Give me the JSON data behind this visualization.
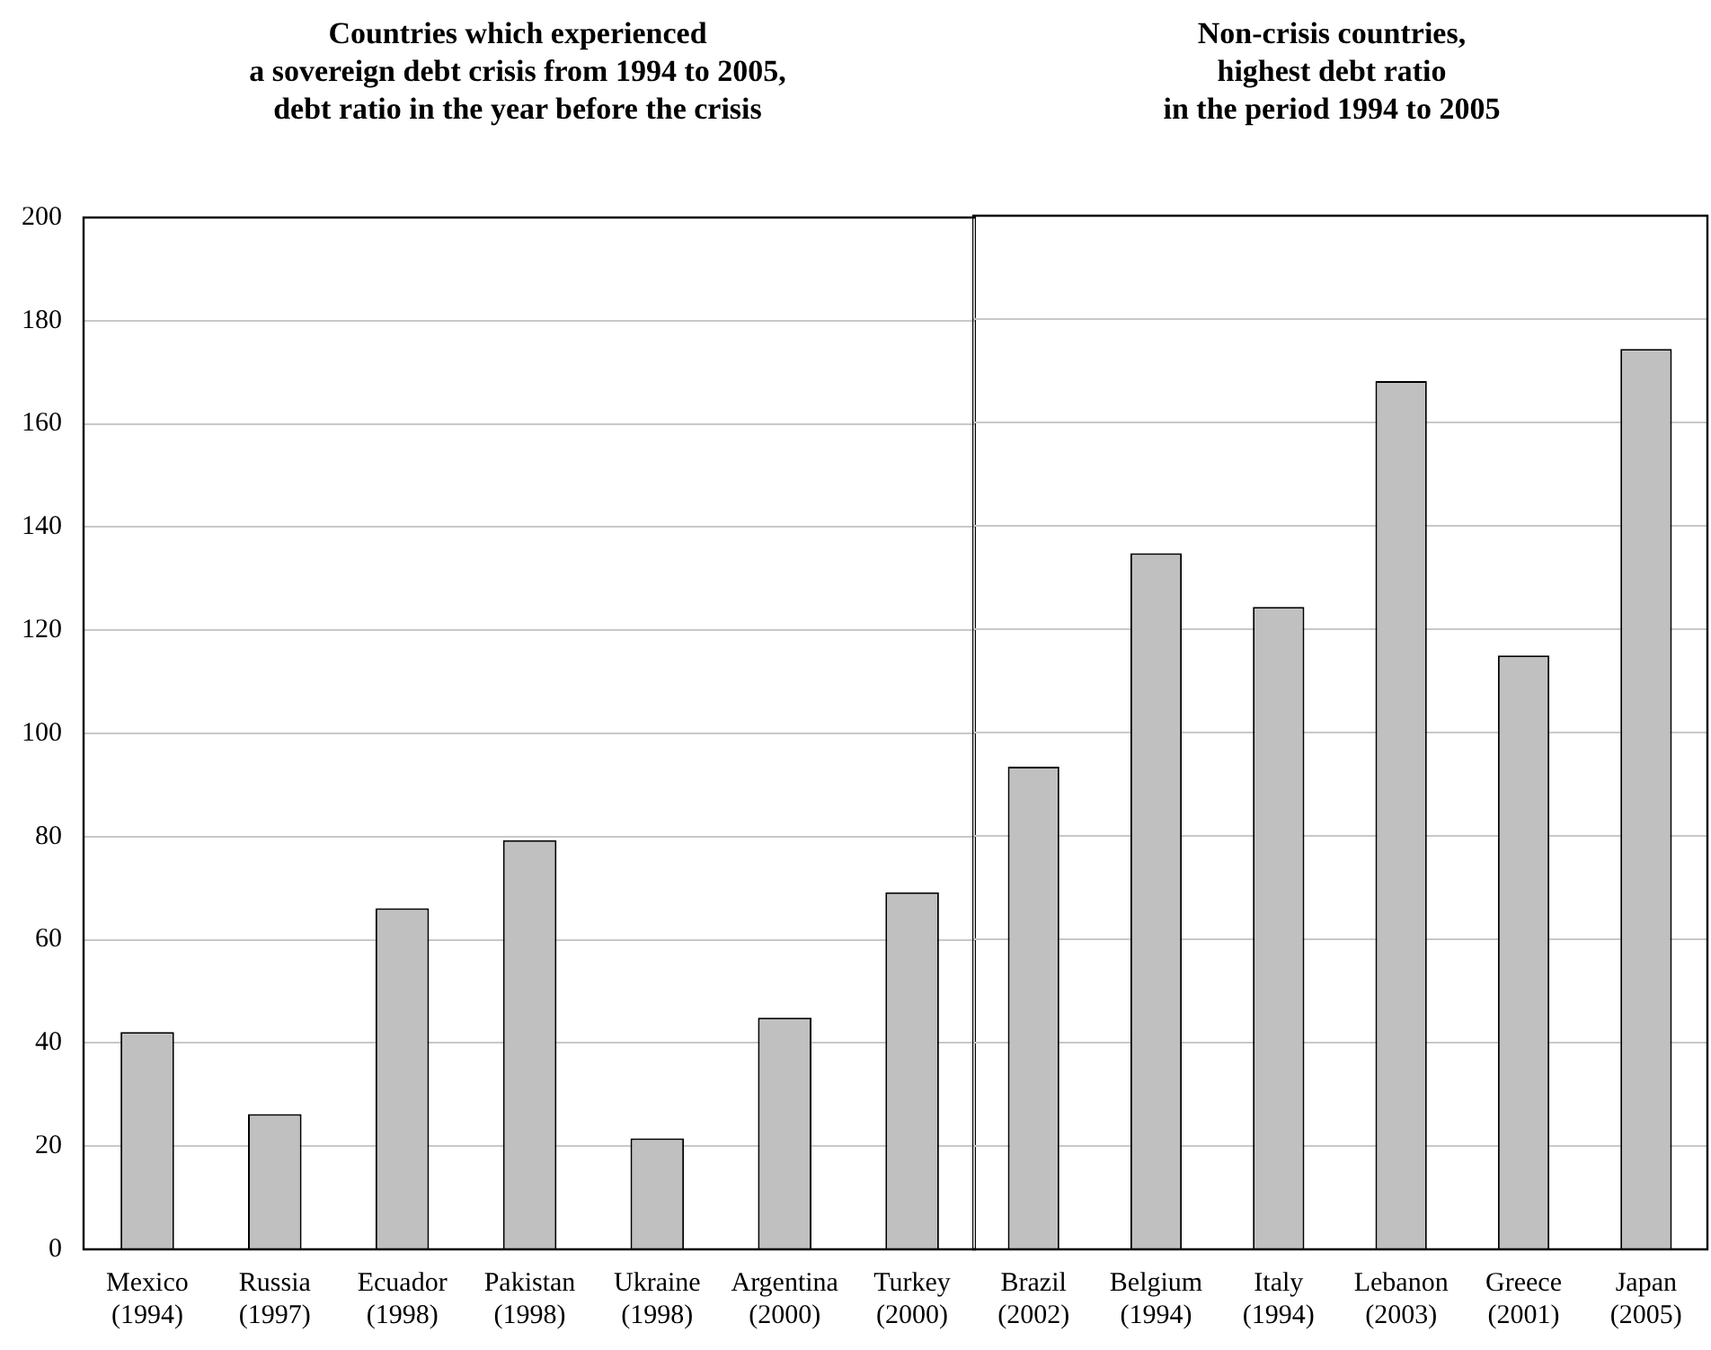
{
  "chart_data": [
    {
      "type": "bar",
      "title": "Countries which experienced\na sovereign debt crisis from 1994 to 2005,\ndebt ratio in the year before the crisis",
      "categories": [
        "Mexico (1994)",
        "Russia (1997)",
        "Ecuador (1998)",
        "Pakistan (1998)",
        "Ukraine (1998)",
        "Argentina (2000)",
        "Turkey (2000)"
      ],
      "values": [
        42.1,
        26.2,
        66.1,
        79.3,
        21.5,
        44.9,
        69.2
      ],
      "color": "#c0c0c0",
      "ylim": [
        0,
        200
      ],
      "yticks": [
        0,
        20,
        40,
        60,
        80,
        100,
        120,
        140,
        160,
        180,
        200
      ],
      "grid": "y"
    },
    {
      "type": "bar",
      "title": "Non-crisis countries,\nhighest debt ratio\nin the period 1994 to 2005",
      "categories": [
        "Brazil (2002)",
        "Belgium (1994)",
        "Italy (1994)",
        "Lebanon (2003)",
        "Greece (2001)",
        "Japan (2005)"
      ],
      "values": [
        93.4,
        134.7,
        124.3,
        168,
        114.9,
        174.2
      ],
      "color": "#c0c0c0",
      "ylim": [
        0,
        200
      ],
      "yticks": [
        0,
        20,
        40,
        60,
        80,
        100,
        120,
        140,
        160,
        180,
        200
      ],
      "grid": "y",
      "tick_labels": "x"
    }
  ]
}
